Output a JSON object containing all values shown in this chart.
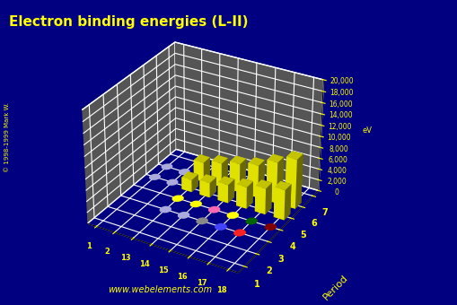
{
  "title": "Electron binding energies (L-II)",
  "ylabel": "Period",
  "background_color": "#000080",
  "floor_color": "#555555",
  "title_color": "#ffff00",
  "axis_color": "#ffff00",
  "watermark": "www.webelements.com",
  "copyright": "© 1998-1999 Mark W.",
  "groups": [
    1,
    2,
    13,
    14,
    15,
    16,
    17,
    18
  ],
  "group_labels": [
    "1",
    "2",
    "13",
    "14",
    "15",
    "16",
    "17",
    "18"
  ],
  "periods": [
    1,
    2,
    3,
    4,
    5,
    6,
    7
  ],
  "zlim": [
    0,
    20000
  ],
  "zticks": [
    0,
    2000,
    4000,
    6000,
    8000,
    10000,
    12000,
    14000,
    16000,
    18000,
    20000
  ],
  "elev": 30,
  "azim": -60,
  "bar_data": [
    {
      "g": 0,
      "p": 0,
      "value": 0,
      "color": "#c8c8ff"
    },
    {
      "g": 0,
      "p": 1,
      "value": 0,
      "color": "#c8c8ff"
    },
    {
      "g": 0,
      "p": 2,
      "value": 0,
      "color": "#c8c8ff"
    },
    {
      "g": 0,
      "p": 3,
      "value": 0,
      "color": "#c8c8ff"
    },
    {
      "g": 0,
      "p": 4,
      "value": 88,
      "color": "#aaaadd"
    },
    {
      "g": 0,
      "p": 5,
      "value": 214,
      "color": "#aaaadd"
    },
    {
      "g": 0,
      "p": 6,
      "value": 0,
      "color": "#aaaadd"
    },
    {
      "g": 1,
      "p": 0,
      "value": 0,
      "color": "#c8c8ff"
    },
    {
      "g": 1,
      "p": 1,
      "value": 0,
      "color": "#c8c8ff"
    },
    {
      "g": 1,
      "p": 2,
      "value": 0,
      "color": "#c8c8ff"
    },
    {
      "g": 1,
      "p": 3,
      "value": 0,
      "color": "#c8c8ff"
    },
    {
      "g": 1,
      "p": 4,
      "value": 136,
      "color": "#aaaadd"
    },
    {
      "g": 1,
      "p": 5,
      "value": 319,
      "color": "#aaaadd"
    },
    {
      "g": 1,
      "p": 6,
      "value": 0,
      "color": "#aaaadd"
    },
    {
      "g": 2,
      "p": 0,
      "value": 0,
      "color": "#c8c8ff"
    },
    {
      "g": 2,
      "p": 1,
      "value": 0,
      "color": "#c8c8ff"
    },
    {
      "g": 2,
      "p": 2,
      "value": 89,
      "color": "#aaaadd"
    },
    {
      "g": 2,
      "p": 3,
      "value": 120,
      "color": "#ffff00"
    },
    {
      "g": 2,
      "p": 4,
      "value": 2222,
      "color": "#ffff00"
    },
    {
      "g": 2,
      "p": 5,
      "value": 3491,
      "color": "#ffff00"
    },
    {
      "g": 2,
      "p": 6,
      "value": 0,
      "color": "#ffff00"
    },
    {
      "g": 3,
      "p": 0,
      "value": 0,
      "color": "#c8c8ff"
    },
    {
      "g": 3,
      "p": 1,
      "value": 0,
      "color": "#c8c8ff"
    },
    {
      "g": 3,
      "p": 2,
      "value": 100,
      "color": "#aaaadd"
    },
    {
      "g": 3,
      "p": 3,
      "value": 165,
      "color": "#ffff00"
    },
    {
      "g": 3,
      "p": 4,
      "value": 2677,
      "color": "#ffff00"
    },
    {
      "g": 3,
      "p": 5,
      "value": 4317,
      "color": "#ffff00"
    },
    {
      "g": 3,
      "p": 6,
      "value": 0,
      "color": "#ffff00"
    },
    {
      "g": 4,
      "p": 0,
      "value": 0,
      "color": "#c8c8ff"
    },
    {
      "g": 4,
      "p": 1,
      "value": 0,
      "color": "#c8c8ff"
    },
    {
      "g": 4,
      "p": 2,
      "value": 136,
      "color": "#888888"
    },
    {
      "g": 4,
      "p": 3,
      "value": 166,
      "color": "#ff69b4"
    },
    {
      "g": 4,
      "p": 4,
      "value": 3332,
      "color": "#ffff00"
    },
    {
      "g": 4,
      "p": 5,
      "value": 5182,
      "color": "#ffff00"
    },
    {
      "g": 4,
      "p": 6,
      "value": 0,
      "color": "#ffff00"
    },
    {
      "g": 5,
      "p": 0,
      "value": 0,
      "color": "#c8c8ff"
    },
    {
      "g": 5,
      "p": 1,
      "value": 0,
      "color": "#c8c8ff"
    },
    {
      "g": 5,
      "p": 2,
      "value": 163,
      "color": "#4444ff"
    },
    {
      "g": 5,
      "p": 3,
      "value": 230,
      "color": "#ffff00"
    },
    {
      "g": 5,
      "p": 4,
      "value": 3929,
      "color": "#ffff00"
    },
    {
      "g": 5,
      "p": 5,
      "value": 5890,
      "color": "#ffff00"
    },
    {
      "g": 5,
      "p": 6,
      "value": 0,
      "color": "#ffff00"
    },
    {
      "g": 6,
      "p": 0,
      "value": 0,
      "color": "#c8c8ff"
    },
    {
      "g": 6,
      "p": 1,
      "value": 0,
      "color": "#c8c8ff"
    },
    {
      "g": 6,
      "p": 2,
      "value": 202,
      "color": "#ff2222"
    },
    {
      "g": 6,
      "p": 3,
      "value": 180,
      "color": "#006400"
    },
    {
      "g": 6,
      "p": 4,
      "value": 4698,
      "color": "#ffff00"
    },
    {
      "g": 6,
      "p": 5,
      "value": 7427,
      "color": "#ffff00"
    },
    {
      "g": 6,
      "p": 6,
      "value": 0,
      "color": "#ffff00"
    },
    {
      "g": 7,
      "p": 0,
      "value": 0,
      "color": "#ffc8ff"
    },
    {
      "g": 7,
      "p": 1,
      "value": 0,
      "color": "#ffff88"
    },
    {
      "g": 7,
      "p": 2,
      "value": 0,
      "color": "#ffff88"
    },
    {
      "g": 7,
      "p": 3,
      "value": 270,
      "color": "#800000"
    },
    {
      "g": 7,
      "p": 4,
      "value": 5453,
      "color": "#ffff00"
    },
    {
      "g": 7,
      "p": 5,
      "value": 8944,
      "color": "#ffff00"
    },
    {
      "g": 7,
      "p": 6,
      "value": 0,
      "color": "#ffff00"
    }
  ]
}
